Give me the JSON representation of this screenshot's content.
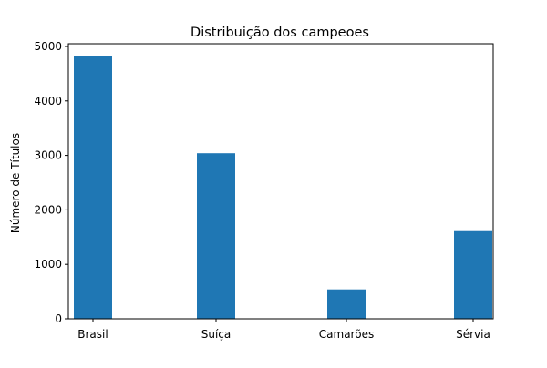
{
  "chart_data": {
    "type": "bar",
    "title": "Distribuição dos campeoes",
    "xlabel": "",
    "ylabel": "Número de Títulos",
    "categories": [
      "Brasil",
      "Suíça",
      "Camarões",
      "Sérvia"
    ],
    "values": [
      4820,
      3040,
      540,
      1610
    ],
    "ylim": [
      0,
      5050
    ],
    "yticks": [
      0,
      1000,
      2000,
      3000,
      4000,
      5000
    ],
    "grid": false,
    "legend": "none",
    "bar_color": "#1f77b4"
  }
}
